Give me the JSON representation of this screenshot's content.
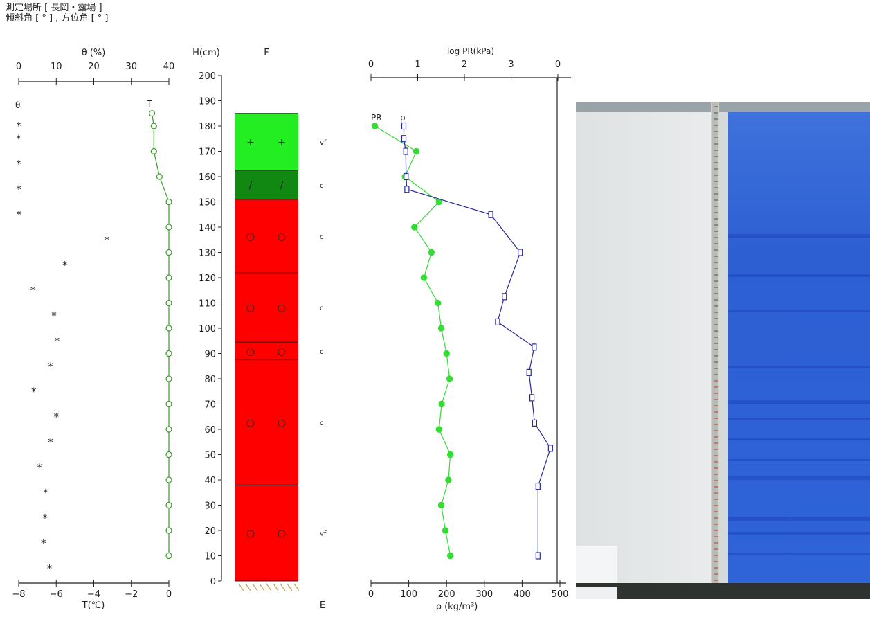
{
  "header": {
    "line1": "測定場所 [ 長岡・露場 ]",
    "line2": "傾斜角 [ ° ] , 方位角 [ ° ]"
  },
  "colors": {
    "temp": "#3a9a2a",
    "pr": "#33dd33",
    "rho": "#2a2a9a",
    "layer_red": "#ff0000",
    "layer_lightgreen": "#22ee22",
    "layer_darkgreen": "#118811",
    "snow_white": "#e4e6e7",
    "snow_blue": "#2a5ed6"
  },
  "chart_data": [
    {
      "type": "scatter",
      "name": "temperature_and_moisture_profile",
      "axis_theta": {
        "label": "θ (%)",
        "range": [
          0,
          40
        ],
        "ticks": [
          "0",
          "10",
          "20",
          "30",
          "40"
        ]
      },
      "axis_T": {
        "label": "T(℃)",
        "range": [
          -8,
          0
        ],
        "ticks": [
          "−8",
          "−6",
          "−4",
          "−2",
          "0"
        ]
      },
      "series": [
        {
          "name": "T",
          "points": [
            {
              "h": 185,
              "T": -0.9
            },
            {
              "h": 180,
              "T": -0.8
            },
            {
              "h": 170,
              "T": -0.8
            },
            {
              "h": 160,
              "T": -0.5
            },
            {
              "h": 150,
              "T": 0
            },
            {
              "h": 140,
              "T": 0
            },
            {
              "h": 130,
              "T": 0
            },
            {
              "h": 120,
              "T": 0
            },
            {
              "h": 110,
              "T": 0
            },
            {
              "h": 100,
              "T": 0
            },
            {
              "h": 90,
              "T": 0
            },
            {
              "h": 80,
              "T": 0
            },
            {
              "h": 70,
              "T": 0
            },
            {
              "h": 60,
              "T": 0
            },
            {
              "h": 50,
              "T": 0
            },
            {
              "h": 40,
              "T": 0
            },
            {
              "h": 30,
              "T": 0
            },
            {
              "h": 20,
              "T": 0
            },
            {
              "h": 10,
              "T": 0
            }
          ]
        },
        {
          "name": "θ",
          "points": [
            {
              "h": 180,
              "theta": 0
            },
            {
              "h": 175,
              "theta": 0
            },
            {
              "h": 165,
              "theta": 0
            },
            {
              "h": 155,
              "theta": 0
            },
            {
              "h": 145,
              "theta": 0
            },
            {
              "h": 135,
              "theta": 23.5
            },
            {
              "h": 125,
              "theta": 12.3
            },
            {
              "h": 115,
              "theta": 3.8
            },
            {
              "h": 105,
              "theta": 9.4
            },
            {
              "h": 95,
              "theta": 10.2
            },
            {
              "h": 85,
              "theta": 8.5
            },
            {
              "h": 75,
              "theta": 4.0
            },
            {
              "h": 65,
              "theta": 10.0
            },
            {
              "h": 55,
              "theta": 8.5
            },
            {
              "h": 45,
              "theta": 5.5
            },
            {
              "h": 35,
              "theta": 7.2
            },
            {
              "h": 25,
              "theta": 7.0
            },
            {
              "h": 15,
              "theta": 6.6
            },
            {
              "h": 5,
              "theta": 8.2
            }
          ]
        }
      ]
    },
    {
      "type": "bar",
      "name": "snow_layers",
      "height_axis": {
        "label": "H(cm)",
        "range": [
          0,
          200
        ],
        "ticks": [
          "0",
          "10",
          "20",
          "30",
          "40",
          "50",
          "60",
          "70",
          "80",
          "90",
          "100",
          "110",
          "120",
          "130",
          "140",
          "150",
          "160",
          "170",
          "180",
          "190",
          "200"
        ]
      },
      "column_label": "F",
      "bottom_label": "E",
      "layers": [
        {
          "top": 185,
          "bottom": 162.5,
          "color": "lightgreen",
          "symbol": "+",
          "grain": "vf"
        },
        {
          "top": 162.5,
          "bottom": 151,
          "color": "darkgreen",
          "symbol": "/",
          "grain": "c"
        },
        {
          "top": 151,
          "bottom": 122,
          "color": "red",
          "symbol": "○",
          "grain": "c"
        },
        {
          "top": 122,
          "bottom": 94.5,
          "color": "red",
          "symbol": "○",
          "grain": "c"
        },
        {
          "top": 94.5,
          "bottom": 87.5,
          "color": "red",
          "symbol": "○",
          "grain": "c"
        },
        {
          "top": 87.5,
          "bottom": 38,
          "color": "red",
          "symbol": "○",
          "grain": "c"
        },
        {
          "top": 38,
          "bottom": 0,
          "color": "red",
          "symbol": "○",
          "grain": "vf"
        }
      ]
    },
    {
      "type": "line",
      "name": "pr_and_density_profile",
      "axis_pr": {
        "label": "log PR(kPa)",
        "range": [
          0,
          4
        ],
        "ticks": [
          "0",
          "1",
          "2",
          "3",
          "0"
        ]
      },
      "axis_rho": {
        "label": "ρ (kg/m³)",
        "range": [
          0,
          500
        ],
        "ticks": [
          "0",
          "100",
          "200",
          "300",
          "400",
          "500"
        ]
      },
      "series": [
        {
          "name": "PR",
          "points": [
            {
              "h": 180,
              "rho": 10
            },
            {
              "h": 170,
              "rho": 120
            },
            {
              "h": 160,
              "rho": 90
            },
            {
              "h": 150,
              "rho": 180
            },
            {
              "h": 140,
              "rho": 115
            },
            {
              "h": 130,
              "rho": 160
            },
            {
              "h": 120,
              "rho": 140
            },
            {
              "h": 110,
              "rho": 177
            },
            {
              "h": 100,
              "rho": 186
            },
            {
              "h": 90,
              "rho": 200
            },
            {
              "h": 80,
              "rho": 208
            },
            {
              "h": 70,
              "rho": 187
            },
            {
              "h": 60,
              "rho": 180
            },
            {
              "h": 50,
              "rho": 210
            },
            {
              "h": 40,
              "rho": 205
            },
            {
              "h": 30,
              "rho": 186
            },
            {
              "h": 20,
              "rho": 197
            },
            {
              "h": 10,
              "rho": 210
            }
          ]
        },
        {
          "name": "ρ",
          "points": [
            {
              "h": 180,
              "rho": 87
            },
            {
              "h": 175,
              "rho": 87
            },
            {
              "h": 170,
              "rho": 92
            },
            {
              "h": 160,
              "rho": 93
            },
            {
              "h": 155,
              "rho": 95
            },
            {
              "h": 145,
              "rho": 317
            },
            {
              "h": 130,
              "rho": 395
            },
            {
              "h": 112.5,
              "rho": 353
            },
            {
              "h": 102.5,
              "rho": 335
            },
            {
              "h": 92.5,
              "rho": 432
            },
            {
              "h": 82.5,
              "rho": 418
            },
            {
              "h": 72.5,
              "rho": 426
            },
            {
              "h": 62.5,
              "rho": 433
            },
            {
              "h": 52.5,
              "rho": 475
            },
            {
              "h": 37.5,
              "rho": 442
            },
            {
              "h": 10,
              "rho": 442
            }
          ]
        }
      ]
    }
  ]
}
